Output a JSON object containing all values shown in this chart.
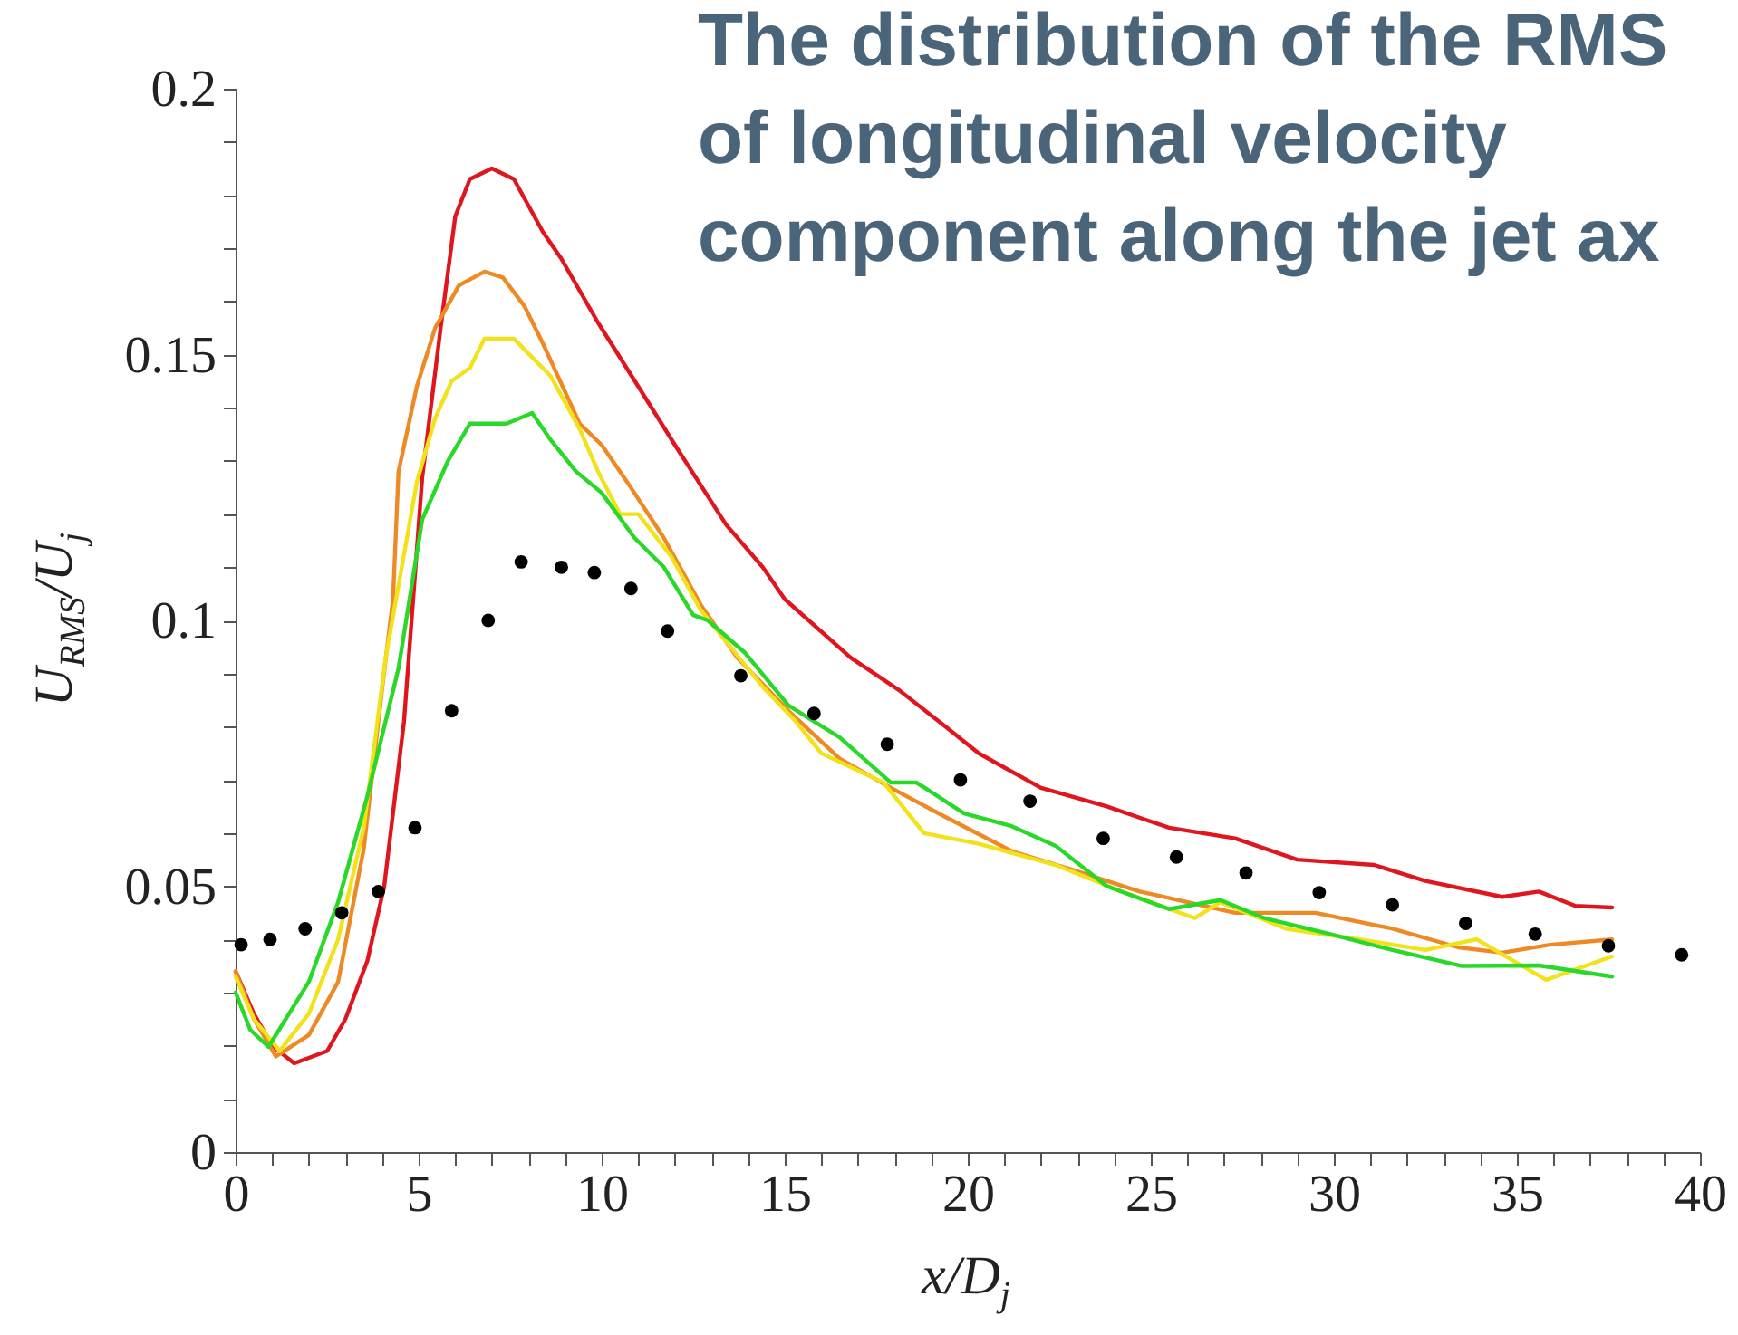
{
  "chart_data": {
    "type": "line",
    "title": "The distribution of the RMS of longitudinal velocity component along the jet ax",
    "xlabel": "x/D$_{j}$",
    "ylabel": "U$_{RMS}$/U$_{j}$",
    "xlim": [
      0,
      40
    ],
    "ylim": [
      0,
      0.2
    ],
    "xticks": [
      0,
      {
        "value": 1,
        "label": null
      },
      {
        "value": 2,
        "label": null
      },
      {
        "value": 3,
        "label": null
      },
      {
        "value": 4,
        "label": null
      },
      5,
      {
        "value": 6,
        "label": null
      },
      {
        "value": 7,
        "label": null
      },
      {
        "value": 8,
        "label": null
      },
      {
        "value": 9,
        "label": null
      },
      10,
      {
        "value": 11,
        "label": null
      },
      {
        "value": 12,
        "label": null
      },
      {
        "value": 13,
        "label": null
      },
      {
        "value": 14,
        "label": null
      },
      15,
      {
        "value": 16,
        "label": null
      },
      {
        "value": 17,
        "label": null
      },
      {
        "value": 18,
        "label": null
      },
      {
        "value": 19,
        "label": null
      },
      20,
      {
        "value": 21,
        "label": null
      },
      {
        "value": 22,
        "label": null
      },
      {
        "value": 23,
        "label": null
      },
      {
        "value": 24,
        "label": null
      },
      25,
      {
        "value": 26,
        "label": null
      },
      {
        "value": 27,
        "label": null
      },
      {
        "value": 28,
        "label": null
      },
      {
        "value": 29,
        "label": null
      },
      30,
      {
        "value": 31,
        "label": null
      },
      {
        "value": 32,
        "label": null
      },
      {
        "value": 33,
        "label": null
      },
      {
        "value": 34,
        "label": null
      },
      35,
      {
        "value": 36,
        "label": null
      },
      {
        "value": 37,
        "label": null
      },
      {
        "value": 38,
        "label": null
      },
      {
        "value": 39,
        "label": null
      },
      40
    ],
    "yticks": [
      0,
      {
        "value": 0.01,
        "label": null
      },
      {
        "value": 0.02,
        "label": null
      },
      {
        "value": 0.03,
        "label": null
      },
      {
        "value": 0.04,
        "label": null
      },
      0.05,
      {
        "value": 0.06,
        "label": null
      },
      {
        "value": 0.07,
        "label": null
      },
      {
        "value": 0.08,
        "label": null
      },
      {
        "value": 0.09,
        "label": null
      },
      0.1,
      {
        "value": 0.11,
        "label": null
      },
      {
        "value": 0.12,
        "label": null
      },
      {
        "value": 0.13,
        "label": null
      },
      {
        "value": 0.14,
        "label": null
      },
      0.15,
      {
        "value": 0.16,
        "label": null
      },
      {
        "value": 0.17,
        "label": null
      },
      {
        "value": 0.18,
        "label": null
      },
      {
        "value": 0.19,
        "label": null
      },
      0.2
    ],
    "grid": false,
    "line_style": "solid",
    "series": [
      {
        "color": "#e0161e",
        "x": [
          0,
          0.5,
          1,
          1.6,
          2.5,
          3.0,
          3.6,
          4.06,
          4.6,
          4.85,
          5.1,
          5.6,
          6.0,
          6.4,
          7.0,
          7.6,
          8.4,
          8.9,
          9.9,
          11.0,
          12.0,
          13.4,
          14.4,
          15.0,
          16.8,
          18.1,
          19.4,
          20.3,
          22.0,
          23.8,
          25.5,
          27.3,
          29.0,
          31.1,
          32.5,
          34.6,
          35.6,
          36.6,
          37.6
        ],
        "values": [
          0.034,
          0.026,
          0.02,
          0.0167,
          0.019,
          0.025,
          0.036,
          0.05,
          0.081,
          0.104,
          0.127,
          0.155,
          0.176,
          0.183,
          0.185,
          0.183,
          0.173,
          0.168,
          0.156,
          0.144,
          0.133,
          0.118,
          0.11,
          0.104,
          0.093,
          0.087,
          0.08,
          0.075,
          0.0685,
          0.065,
          0.061,
          0.059,
          0.055,
          0.054,
          0.051,
          0.048,
          0.049,
          0.0463,
          0.046
        ]
      },
      {
        "color": "#ee8a26",
        "x": [
          0,
          0.5,
          1.1,
          2.0,
          2.8,
          3.5,
          4.0,
          4.3,
          4.45,
          4.95,
          5.45,
          6.1,
          6.8,
          7.3,
          7.9,
          8.4,
          9.4,
          10.0,
          10.7,
          11.7,
          12.7,
          13.7,
          15.1,
          16.5,
          17.9,
          19.4,
          21.2,
          22.9,
          24.7,
          27.3,
          29.5,
          31.6,
          33.4,
          34.6,
          35.9,
          37.6
        ],
        "values": [
          0.034,
          0.025,
          0.018,
          0.022,
          0.032,
          0.057,
          0.087,
          0.104,
          0.128,
          0.144,
          0.155,
          0.163,
          0.1656,
          0.1645,
          0.159,
          0.152,
          0.137,
          0.133,
          0.126,
          0.1155,
          0.103,
          0.093,
          0.083,
          0.074,
          0.0685,
          0.063,
          0.0566,
          0.053,
          0.049,
          0.045,
          0.045,
          0.042,
          0.0385,
          0.0375,
          0.039,
          0.04
        ]
      },
      {
        "color": "#f2e21c",
        "x": [
          0,
          0.5,
          1.2,
          2.0,
          2.8,
          3.5,
          4.1,
          4.95,
          5.45,
          5.9,
          6.4,
          6.8,
          7.6,
          8.6,
          9.4,
          9.9,
          10.5,
          11.0,
          11.9,
          12.7,
          14.4,
          15.3,
          16.0,
          17.7,
          18.8,
          20.3,
          22.4,
          24.2,
          26.2,
          26.9,
          28.7,
          30.7,
          32.5,
          33.9,
          35.8,
          37.6
        ],
        "values": [
          0.033,
          0.025,
          0.019,
          0.026,
          0.04,
          0.061,
          0.093,
          0.126,
          0.138,
          0.145,
          0.1475,
          0.153,
          0.153,
          0.146,
          0.136,
          0.128,
          0.12,
          0.12,
          0.112,
          0.102,
          0.0875,
          0.081,
          0.075,
          0.0695,
          0.06,
          0.058,
          0.054,
          0.049,
          0.044,
          0.047,
          0.042,
          0.04,
          0.038,
          0.04,
          0.0324,
          0.0368
        ]
      },
      {
        "color": "#2ad82a",
        "x": [
          0,
          0.4,
          0.9,
          2.0,
          2.8,
          3.6,
          4.45,
          5.1,
          5.8,
          6.4,
          7.4,
          8.1,
          8.6,
          9.3,
          10.0,
          10.9,
          11.7,
          12.5,
          12.9,
          13.9,
          15.1,
          16.5,
          17.9,
          18.6,
          19.9,
          21.2,
          22.4,
          23.8,
          25.5,
          26.9,
          28.1,
          29.9,
          31.6,
          33.5,
          35.6,
          37.6
        ],
        "values": [
          0.03,
          0.023,
          0.0198,
          0.032,
          0.047,
          0.067,
          0.091,
          0.119,
          0.13,
          0.137,
          0.137,
          0.139,
          0.134,
          0.128,
          0.124,
          0.1155,
          0.11,
          0.101,
          0.1,
          0.094,
          0.084,
          0.078,
          0.0695,
          0.0695,
          0.0637,
          0.0613,
          0.0576,
          0.05,
          0.0457,
          0.0474,
          0.044,
          0.041,
          0.038,
          0.035,
          0.0351,
          0.033
        ]
      },
      {
        "type": "scatter",
        "color": "#000000",
        "marker": "circle",
        "x": [
          0.15,
          0.94,
          1.9,
          2.9,
          3.9,
          4.9,
          5.9,
          6.9,
          7.8,
          8.9,
          9.8,
          10.8,
          11.8,
          13.8,
          15.8,
          17.8,
          19.8,
          21.7,
          23.7,
          25.7,
          27.6,
          29.6,
          31.6,
          33.6,
          35.5,
          37.5,
          39.5
        ],
        "values": [
          0.039,
          0.04,
          0.042,
          0.045,
          0.049,
          0.061,
          0.083,
          0.1,
          0.111,
          0.11,
          0.109,
          0.106,
          0.098,
          0.0896,
          0.0825,
          0.0767,
          0.07,
          0.066,
          0.059,
          0.0555,
          0.0525,
          0.0488,
          0.0465,
          0.043,
          0.041,
          0.0388,
          0.0371
        ]
      }
    ]
  }
}
